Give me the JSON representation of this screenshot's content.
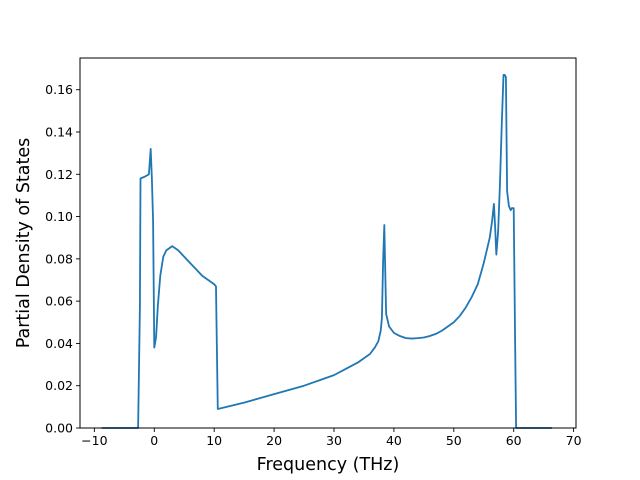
{
  "chart_data": {
    "type": "line",
    "title": "",
    "xlabel": "Frequency (THz)",
    "ylabel": "Partial Density of States",
    "xlim": [
      -12.4,
      70.4
    ],
    "ylim": [
      0.0,
      0.175
    ],
    "xticks": [
      -10,
      0,
      10,
      20,
      30,
      40,
      50,
      60,
      70
    ],
    "yticks": [
      0.0,
      0.02,
      0.04,
      0.06,
      0.08,
      0.1,
      0.12,
      0.14,
      0.16
    ],
    "ytick_labels": [
      "0.00",
      "0.02",
      "0.04",
      "0.06",
      "0.08",
      "0.10",
      "0.12",
      "0.14",
      "0.16"
    ],
    "grid": false,
    "line_color": "#1f77b4",
    "series": [
      {
        "x": [
          -8.8,
          -2.7,
          -2.4,
          -2.3,
          -1.5,
          -0.9,
          -0.6,
          -0.4,
          -0.2,
          0.0,
          0.3,
          0.6,
          1.0,
          1.5,
          2.0,
          2.5,
          3.0,
          4.0,
          5.0,
          6.0,
          7.0,
          8.0,
          9.0,
          10.0,
          10.3,
          10.6,
          15.0,
          20.0,
          25.0,
          28.0,
          30.0,
          32.0,
          34.0,
          35.0,
          36.0,
          36.8,
          37.4,
          37.8,
          38.0,
          38.2,
          38.4,
          38.7,
          39.2,
          40.0,
          41.0,
          42.0,
          43.0,
          44.0,
          45.0,
          46.0,
          47.0,
          48.0,
          49.0,
          50.0,
          51.0,
          52.0,
          53.0,
          54.0,
          55.0,
          55.5,
          56.0,
          56.4,
          56.7,
          56.9,
          57.1,
          57.4,
          57.7,
          58.0,
          58.3,
          58.5,
          58.7,
          58.9,
          59.2,
          59.5,
          59.7,
          60.0,
          60.2,
          60.4,
          61.0,
          66.4
        ],
        "y": [
          0.0,
          0.0,
          0.057,
          0.118,
          0.119,
          0.12,
          0.132,
          0.118,
          0.098,
          0.038,
          0.043,
          0.058,
          0.072,
          0.081,
          0.084,
          0.085,
          0.086,
          0.084,
          0.081,
          0.078,
          0.075,
          0.072,
          0.07,
          0.068,
          0.067,
          0.009,
          0.012,
          0.016,
          0.02,
          0.023,
          0.025,
          0.028,
          0.031,
          0.033,
          0.035,
          0.038,
          0.041,
          0.046,
          0.052,
          0.079,
          0.096,
          0.054,
          0.048,
          0.045,
          0.0435,
          0.0425,
          0.0423,
          0.0425,
          0.0428,
          0.0435,
          0.0445,
          0.046,
          0.048,
          0.05,
          0.053,
          0.057,
          0.062,
          0.068,
          0.078,
          0.084,
          0.09,
          0.098,
          0.106,
          0.095,
          0.082,
          0.093,
          0.115,
          0.143,
          0.167,
          0.167,
          0.166,
          0.112,
          0.105,
          0.103,
          0.104,
          0.104,
          0.05,
          0.0,
          0.0,
          0.0
        ]
      }
    ]
  }
}
